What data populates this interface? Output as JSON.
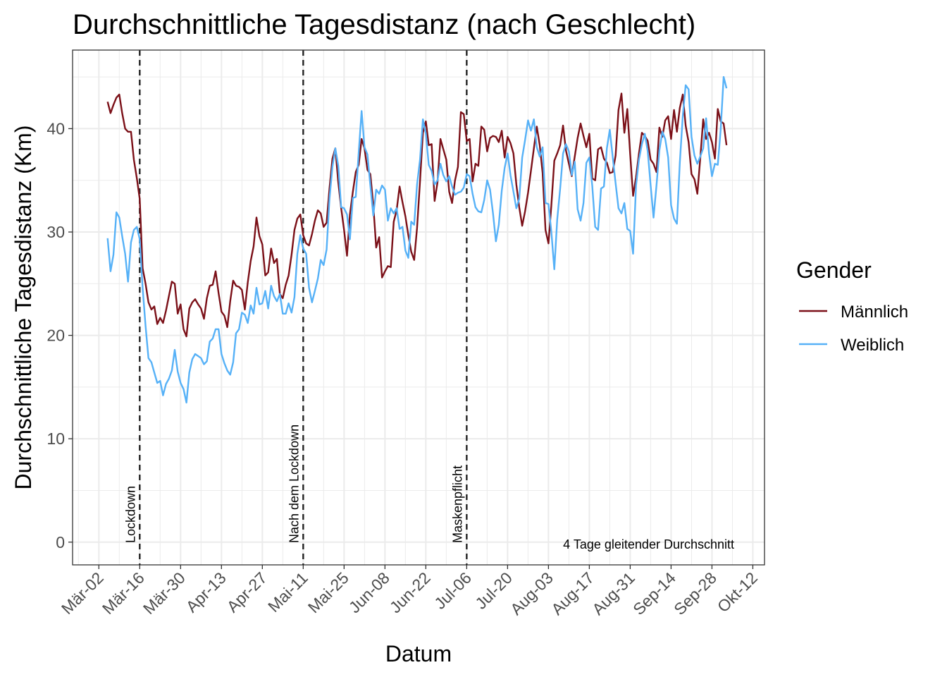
{
  "chart_data": {
    "type": "line",
    "title": "Durchschnittliche Tagesdistanz (nach Geschlecht)",
    "xlabel": "Datum",
    "ylabel": "Durchschnittliche Tagesdistanz (Km)",
    "x_ticks": [
      "Mär-02",
      "Mär-16",
      "Mär-30",
      "Apr-13",
      "Apr-27",
      "Mai-11",
      "Mai-25",
      "Jun-08",
      "Jun-22",
      "Jul-06",
      "Jul-20",
      "Aug-03",
      "Aug-17",
      "Aug-31",
      "Sep-14",
      "Sep-28",
      "Okt-12"
    ],
    "y_ticks": [
      0,
      10,
      20,
      30,
      40
    ],
    "xlim": [
      "2020-02-22",
      "2020-10-16"
    ],
    "ylim": [
      -2.2,
      47.6
    ],
    "grid": true,
    "legend": {
      "title": "Gender",
      "position": "right"
    },
    "annotations": [
      {
        "date": "2020-03-16",
        "label": "Lockdown"
      },
      {
        "date": "2020-05-11",
        "label": "Nach dem Lockdown"
      },
      {
        "date": "2020-07-06",
        "label": "Maskenpflicht"
      }
    ],
    "note": "4 Tage gleitender Durchschnitt",
    "x_start": "2020-03-05",
    "series": [
      {
        "name": "Männlich",
        "color": "#7b1018",
        "values": [
          42.6,
          41.5,
          42.3,
          43.0,
          43.3,
          41.5,
          40.0,
          39.7,
          39.7,
          37.0,
          35.2,
          33.2,
          26.5,
          25.0,
          23.2,
          22.5,
          22.8,
          21.1,
          21.7,
          21.2,
          22.4,
          23.8,
          25.2,
          25.0,
          22.1,
          23.0,
          20.6,
          19.9,
          22.6,
          23.2,
          23.5,
          23.0,
          22.6,
          21.6,
          23.6,
          24.8,
          24.9,
          26.2,
          24.1,
          22.3,
          21.9,
          20.8,
          23.3,
          25.3,
          24.8,
          24.7,
          24.4,
          22.5,
          25.1,
          27.2,
          28.6,
          31.4,
          29.6,
          28.8,
          25.8,
          26.1,
          28.4,
          27.0,
          27.4,
          24.0,
          23.6,
          24.9,
          25.8,
          27.8,
          30.2,
          31.3,
          31.7,
          29.7,
          28.9,
          28.7,
          29.8,
          31.1,
          32.1,
          31.8,
          30.5,
          30.9,
          34.2,
          37.1,
          38.1,
          34.8,
          32.3,
          30.2,
          27.7,
          31.7,
          33.9,
          35.8,
          36.5,
          39.0,
          38.1,
          36.0,
          35.6,
          32.6,
          28.5,
          29.5,
          25.6,
          26.2,
          26.7,
          26.6,
          31.0,
          32.1,
          34.4,
          32.9,
          31.5,
          29.7,
          28.1,
          27.3,
          30.4,
          34.9,
          39.6,
          40.7,
          38.4,
          38.5,
          33.0,
          34.8,
          39.0,
          38.0,
          37.0,
          33.9,
          32.8,
          35.0,
          36.3,
          41.6,
          41.4,
          38.8,
          39.0,
          34.9,
          36.6,
          36.4,
          40.2,
          39.9,
          37.8,
          39.1,
          39.3,
          39.2,
          38.7,
          39.8,
          37.2,
          39.2,
          38.6,
          37.6,
          34.6,
          32.4,
          30.6,
          32.0,
          33.8,
          35.9,
          38.1,
          40.2,
          38.4,
          35.7,
          30.2,
          28.9,
          32.6,
          36.9,
          37.6,
          38.4,
          40.3,
          37.9,
          36.6,
          35.4,
          37.3,
          39.1,
          40.5,
          39.3,
          38.2,
          39.5,
          35.2,
          35.0,
          38.0,
          38.2,
          37.1,
          36.7,
          35.7,
          35.8,
          37.4,
          41.8,
          43.4,
          39.6,
          41.9,
          37.5,
          33.5,
          35.3,
          37.6,
          39.6,
          39.3,
          38.8,
          37.0,
          36.6,
          35.8,
          40.1,
          39.2,
          40.8,
          41.2,
          39.0,
          41.8,
          39.7,
          42.0,
          43.3,
          40.3,
          38.7,
          35.6,
          35.1,
          33.7,
          37.1,
          40.9,
          39.0,
          39.6,
          38.7,
          37.1,
          41.9,
          40.7,
          40.5,
          38.4
        ]
      },
      {
        "name": "Weiblich",
        "color": "#56b1f7",
        "values": [
          29.4,
          26.2,
          27.8,
          31.9,
          31.4,
          29.6,
          27.9,
          25.2,
          29.0,
          30.2,
          30.5,
          29.3,
          24.6,
          20.9,
          17.8,
          17.4,
          16.4,
          15.4,
          15.6,
          14.2,
          15.3,
          15.8,
          16.6,
          18.6,
          16.5,
          15.4,
          14.8,
          13.5,
          16.4,
          17.7,
          18.2,
          18.0,
          17.8,
          17.2,
          17.5,
          19.4,
          19.7,
          20.6,
          20.6,
          18.2,
          17.3,
          16.6,
          16.2,
          17.4,
          20.2,
          20.6,
          22.2,
          22.0,
          21.2,
          22.9,
          22.1,
          24.6,
          23.0,
          23.1,
          24.3,
          22.6,
          24.8,
          23.8,
          23.3,
          24.0,
          22.1,
          22.1,
          23.1,
          22.2,
          23.7,
          27.9,
          29.7,
          28.4,
          27.9,
          24.6,
          23.2,
          24.3,
          25.5,
          27.3,
          26.8,
          28.3,
          33.2,
          36.3,
          38.1,
          36.4,
          32.4,
          32.3,
          31.7,
          29.3,
          33.3,
          33.4,
          37.7,
          41.7,
          38.2,
          37.5,
          34.5,
          31.6,
          34.1,
          33.7,
          34.5,
          34.1,
          31.1,
          32.3,
          31.8,
          32.3,
          30.3,
          30.5,
          28.2,
          27.5,
          31.0,
          30.7,
          34.6,
          37.0,
          40.9,
          39.5,
          36.5,
          35.9,
          34.6,
          35.0,
          36.6,
          35.5,
          34.9,
          35.4,
          34.4,
          33.6,
          33.8,
          33.9,
          34.3,
          35.6,
          35.4,
          33.7,
          32.4,
          32.0,
          31.9,
          33.1,
          35.0,
          34.1,
          31.8,
          29.1,
          30.7,
          34.0,
          36.2,
          37.6,
          35.5,
          33.9,
          32.3,
          33.2,
          37.2,
          38.9,
          40.8,
          39.8,
          40.9,
          38.2,
          37.3,
          38.2,
          32.8,
          32.7,
          30.0,
          26.4,
          31.2,
          34.2,
          37.6,
          38.5,
          37.8,
          35.5,
          36.8,
          32.2,
          31.1,
          32.8,
          36.7,
          37.2,
          34.5,
          30.5,
          30.2,
          34.2,
          34.4,
          38.1,
          39.9,
          37.3,
          34.7,
          32.3,
          31.8,
          32.8,
          30.3,
          30.1,
          27.9,
          34.5,
          37.0,
          38.5,
          39.5,
          37.8,
          34.5,
          31.4,
          34.5,
          37.9,
          39.7,
          39.0,
          37.2,
          32.6,
          31.3,
          30.8,
          36.7,
          41.2,
          44.2,
          43.8,
          39.2,
          37.4,
          36.6,
          37.3,
          38.1,
          41.0,
          37.6,
          35.4,
          36.6,
          36.5,
          39.9,
          45.0,
          43.9
        ]
      }
    ]
  }
}
